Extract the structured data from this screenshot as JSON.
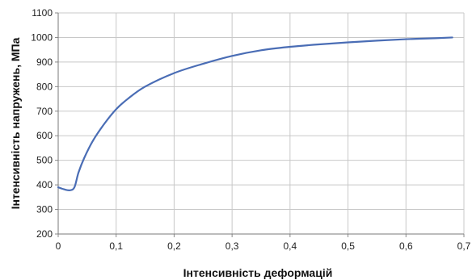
{
  "chart_data": {
    "type": "line",
    "title": "",
    "xlabel": "Інтенсивність деформацій",
    "ylabel": "Інтенсивність напружень, МПа",
    "xlim": [
      0,
      0.7
    ],
    "ylim": [
      200,
      1100
    ],
    "x_ticks": [
      "0",
      "0,1",
      "0,2",
      "0,3",
      "0,4",
      "0,5",
      "0,6",
      "0,7"
    ],
    "y_ticks": [
      "200",
      "300",
      "400",
      "500",
      "600",
      "700",
      "800",
      "900",
      "1000",
      "1100"
    ],
    "grid": true,
    "legend": "none",
    "line_color": "#4a6db5",
    "series": [
      {
        "x": [
          0,
          0.01,
          0.02,
          0.028,
          0.035,
          0.045,
          0.06,
          0.08,
          0.1,
          0.12,
          0.15,
          0.2,
          0.25,
          0.3,
          0.35,
          0.4,
          0.45,
          0.5,
          0.55,
          0.6,
          0.65,
          0.68
        ],
        "y": [
          390,
          382,
          378,
          390,
          450,
          510,
          580,
          650,
          708,
          750,
          800,
          855,
          893,
          925,
          948,
          962,
          972,
          980,
          987,
          993,
          997,
          1000
        ]
      }
    ]
  }
}
